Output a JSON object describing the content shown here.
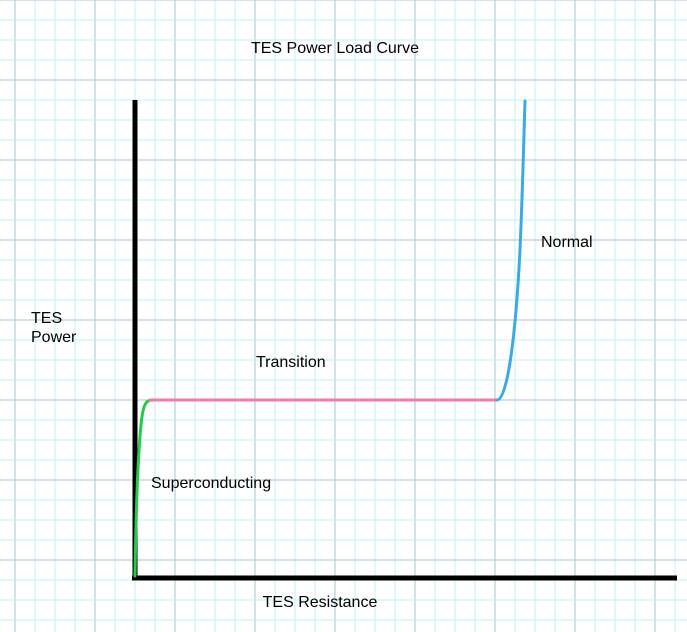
{
  "diagram": {
    "title": "TES Power Load Curve",
    "y_label_line1": "TES",
    "y_label_line2": "Power",
    "x_label": "TES Resistance",
    "regions": {
      "superconducting": "Superconducting",
      "transition": "Transition",
      "normal": "Normal"
    },
    "colors": {
      "background": "#ffffff",
      "grid_minor": "#c4f1f1",
      "grid_major": "#9fc7d0",
      "axes": "#000000",
      "superconducting_curve": "#22cc44",
      "transition_curve": "#f07aaa",
      "normal_curve": "#3aaae6"
    }
  }
}
